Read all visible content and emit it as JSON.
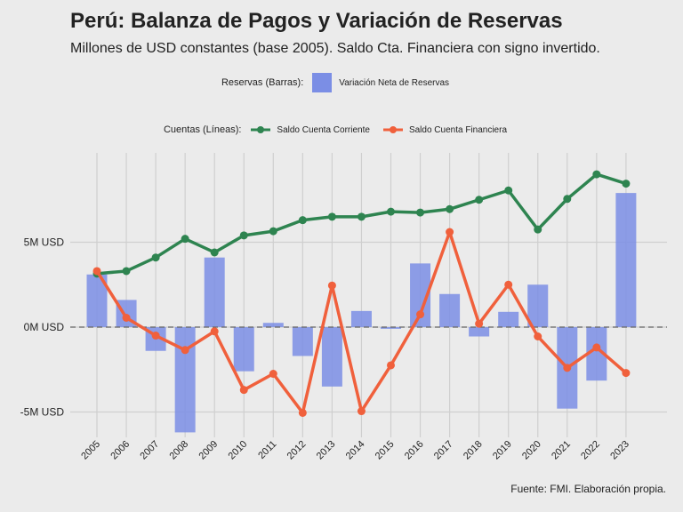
{
  "title": "Perú: Balanza de Pagos y Variación de Reservas",
  "subtitle": "Millones de USD constantes (base 2005). Saldo Cta. Financiera con signo invertido.",
  "caption": "Fuente: FMI. Elaboración propia.",
  "legend_bars": {
    "title": "Reservas (Barras):",
    "items": [
      {
        "label": "Variación Neta de Reservas",
        "color": "#7b8ee5"
      }
    ]
  },
  "legend_lines": {
    "title": "Cuentas (Líneas):",
    "items": [
      {
        "label": "Saldo Cuenta Corriente",
        "color": "#2e8450"
      },
      {
        "label": "Saldo Cuenta Financiera",
        "color": "#f0603c"
      }
    ]
  },
  "chart_data": {
    "type": "bar",
    "categories": [
      "2005",
      "2006",
      "2007",
      "2008",
      "2009",
      "2010",
      "2011",
      "2012",
      "2013",
      "2014",
      "2015",
      "2016",
      "2017",
      "2018",
      "2019",
      "2020",
      "2021",
      "2022",
      "2023"
    ],
    "ylim": [
      -6.5,
      10
    ],
    "yticks": [
      {
        "value": -5,
        "label": "-5M USD"
      },
      {
        "value": 0,
        "label": "0M USD"
      },
      {
        "value": 5,
        "label": "5M USD"
      }
    ],
    "grid": true,
    "zero_line": "dashed",
    "series": [
      {
        "name": "Variación Neta de Reservas",
        "kind": "bar",
        "color": "#7b8ee5",
        "values": [
          3.1,
          1.6,
          -1.4,
          -6.2,
          4.1,
          -2.6,
          0.25,
          -1.7,
          -3.5,
          0.95,
          -0.1,
          3.75,
          1.95,
          -0.55,
          0.9,
          2.5,
          -4.8,
          -3.15,
          7.9
        ]
      },
      {
        "name": "Saldo Cuenta Corriente",
        "kind": "line",
        "color": "#2e8450",
        "values": [
          3.15,
          3.3,
          4.1,
          5.2,
          4.4,
          5.4,
          5.65,
          6.3,
          6.5,
          6.5,
          6.8,
          6.75,
          6.95,
          7.5,
          8.05,
          5.75,
          7.55,
          9.0,
          8.45
        ]
      },
      {
        "name": "Saldo Cuenta Financiera",
        "kind": "line",
        "color": "#f0603c",
        "values": [
          3.3,
          0.55,
          -0.5,
          -1.35,
          -0.25,
          -3.7,
          -2.75,
          -5.05,
          2.45,
          -4.95,
          -2.25,
          0.75,
          5.6,
          0.2,
          2.5,
          -0.55,
          -2.4,
          -1.2,
          -2.7
        ]
      }
    ]
  }
}
